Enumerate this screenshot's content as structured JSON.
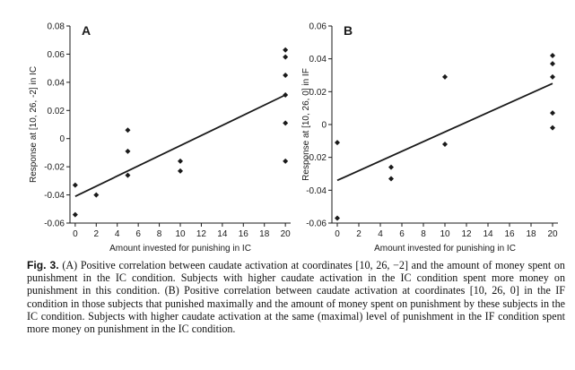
{
  "chart_data": [
    {
      "type": "scatter",
      "panel_label": "A",
      "xlabel": "Amount invested for punishing in IC",
      "ylabel": "Response at [10, 26, -2] in IC",
      "xlim": [
        -0.5,
        20.5
      ],
      "ylim": [
        -0.06,
        0.08
      ],
      "xticks": [
        0,
        2,
        4,
        6,
        8,
        10,
        12,
        14,
        16,
        18,
        20
      ],
      "yticks": [
        -0.06,
        -0.04,
        -0.02,
        0,
        0.02,
        0.04,
        0.06,
        0.08
      ],
      "ytick_labels": [
        "-0.06",
        "-0.04",
        "-0.02",
        "0",
        "0.02",
        "0.04",
        "0.06",
        "0.08"
      ],
      "points": [
        [
          0,
          -0.033
        ],
        [
          0,
          -0.054
        ],
        [
          2,
          -0.04
        ],
        [
          5,
          0.006
        ],
        [
          5,
          -0.009
        ],
        [
          5,
          -0.026
        ],
        [
          10,
          -0.016
        ],
        [
          10,
          -0.023
        ],
        [
          20,
          0.063
        ],
        [
          20,
          0.058
        ],
        [
          20,
          0.045
        ],
        [
          20,
          0.031
        ],
        [
          20,
          0.011
        ],
        [
          20,
          -0.016
        ]
      ],
      "fit_line": [
        [
          0,
          -0.041
        ],
        [
          20,
          0.031
        ]
      ],
      "grid": false
    },
    {
      "type": "scatter",
      "panel_label": "B",
      "xlabel": "Amount invested for punishing in IC",
      "ylabel": "Response at [10, 26, 0] in IF",
      "xlim": [
        -0.5,
        20.5
      ],
      "ylim": [
        -0.06,
        0.06
      ],
      "xticks": [
        0,
        2,
        4,
        6,
        8,
        10,
        12,
        14,
        16,
        18,
        20
      ],
      "yticks": [
        -0.06,
        -0.04,
        -0.02,
        0,
        0.02,
        0.04,
        0.06
      ],
      "ytick_labels": [
        "-0.06",
        "-0.04",
        "-0.02",
        "0",
        "0.02",
        "0.04",
        "0.06"
      ],
      "points": [
        [
          0,
          -0.011
        ],
        [
          0,
          -0.057
        ],
        [
          5,
          -0.026
        ],
        [
          5,
          -0.033
        ],
        [
          10,
          0.029
        ],
        [
          10,
          -0.012
        ],
        [
          20,
          0.042
        ],
        [
          20,
          0.037
        ],
        [
          20,
          0.029
        ],
        [
          20,
          0.007
        ],
        [
          20,
          -0.002
        ]
      ],
      "fit_line": [
        [
          0,
          -0.034
        ],
        [
          20,
          0.025
        ]
      ],
      "grid": false
    }
  ],
  "caption": {
    "label": "Fig. 3.",
    "text": "(A) Positive correlation between caudate activation at coordinates [10, 26, −2] and the amount of money spent on punishment in the IC condition. Subjects with higher caudate activation in the IC condition spent more money on punishment in this condition. (B) Positive correlation between caudate activation at coordinates [10, 26, 0] in the IF condition in those subjects that punished maximally and the amount of money spent on punishment by these subjects in the IC condition. Subjects with higher caudate activation at the same (maximal) level of punishment in the IF condition spent more money on punishment in the IC condition."
  },
  "colors": {
    "ink": "#1a1a1a",
    "background": "#ffffff"
  }
}
